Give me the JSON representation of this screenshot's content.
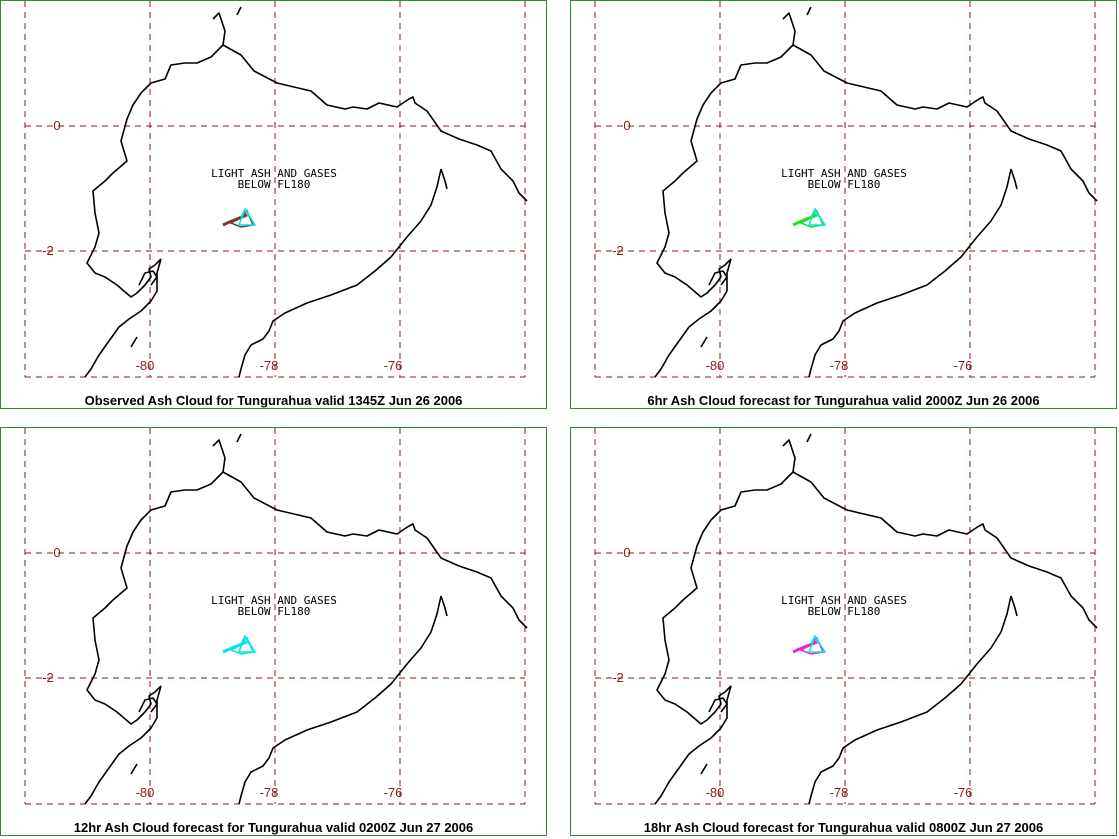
{
  "panels": [
    {
      "caption": "Observed Ash Cloud for Tungurahua valid 1345Z Jun 26 2006",
      "cloud_color": "#7a3b2e",
      "cloud_label_line1": "LIGHT ASH AND GASES",
      "cloud_label_line2": "BELOW FL180"
    },
    {
      "caption": "6hr Ash Cloud forecast for Tungurahua valid 2000Z Jun 26 2006",
      "cloud_color": "#22dd22",
      "cloud_label_line1": "LIGHT ASH AND GASES",
      "cloud_label_line2": "BELOW FL180"
    },
    {
      "caption": "12hr Ash Cloud forecast for Tungurahua valid 0200Z Jun 27 2006",
      "cloud_color": "#00e5ee",
      "cloud_label_line1": "LIGHT ASH AND GASES",
      "cloud_label_line2": "BELOW FL180"
    },
    {
      "caption": "18hr Ash Cloud forecast for Tungurahua valid 0800Z Jun 27 2006",
      "cloud_color": "#ee22cc",
      "cloud_label_line1": "LIGHT ASH AND GASES",
      "cloud_label_line2": "BELOW FL180"
    }
  ],
  "map": {
    "lon_labels": [
      "-80",
      "-78",
      "-76"
    ],
    "lat_labels": [
      "0",
      "-2"
    ],
    "grid_color": "#8b1a1a",
    "source_marker_color": "#00e5ee"
  }
}
